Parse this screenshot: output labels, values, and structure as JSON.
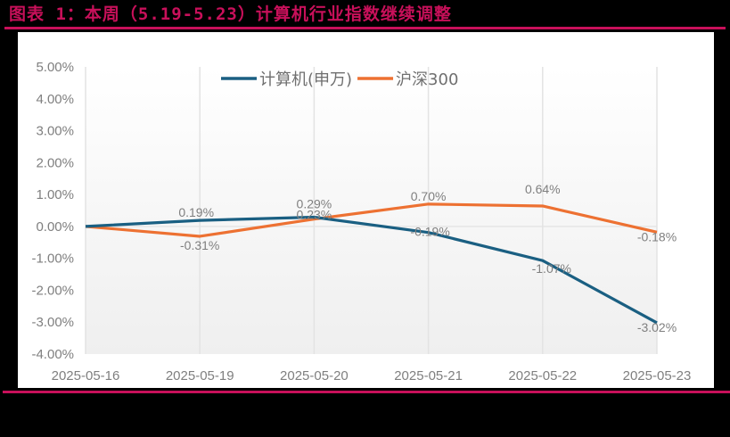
{
  "header": {
    "title": "图表 1：本周（5.19-5.23）计算机行业指数继续调整",
    "title_color": "#c8105a",
    "rule_color": "#c8105a"
  },
  "colors": {
    "series_1": "#1a5f82",
    "series_2": "#ed7132",
    "gridline": "#e3e3e3",
    "axis_text": "#7f7f7f",
    "plot_bg_top": "#ffffff",
    "plot_bg_bottom": "#efefef"
  },
  "chart_data": {
    "type": "line",
    "title": "",
    "xlabel": "",
    "ylabel": "",
    "categories": [
      "2025-05-16",
      "2025-05-19",
      "2025-05-20",
      "2025-05-21",
      "2025-05-22",
      "2025-05-23"
    ],
    "series": [
      {
        "name": "计算机(申万)",
        "values": [
          0.0,
          0.19,
          0.29,
          -0.19,
          -1.07,
          -3.02
        ],
        "labels": [
          "",
          "0.19%",
          "0.29%",
          "-0.19%",
          "-1.07%",
          "-3.02%"
        ],
        "color": "#1a5f82"
      },
      {
        "name": "沪深300",
        "values": [
          0.0,
          -0.31,
          0.23,
          0.7,
          0.64,
          -0.18
        ],
        "labels": [
          "",
          "-0.31%",
          "0.23%",
          "0.70%",
          "0.64%",
          "-0.18%"
        ],
        "color": "#ed7132"
      }
    ],
    "ylim": [
      -4.0,
      5.0
    ],
    "yticks": [
      5.0,
      4.0,
      3.0,
      2.0,
      1.0,
      0.0,
      -1.0,
      -2.0,
      -3.0,
      -4.0
    ],
    "ytick_labels": [
      "5.00%",
      "4.00%",
      "3.00%",
      "2.00%",
      "1.00%",
      "0.00%",
      "-1.00%",
      "-2.00%",
      "-3.00%",
      "-4.00%"
    ],
    "grid": {
      "vertical": true,
      "horizontal_zero_line": true
    },
    "legend_position": "top-center"
  }
}
